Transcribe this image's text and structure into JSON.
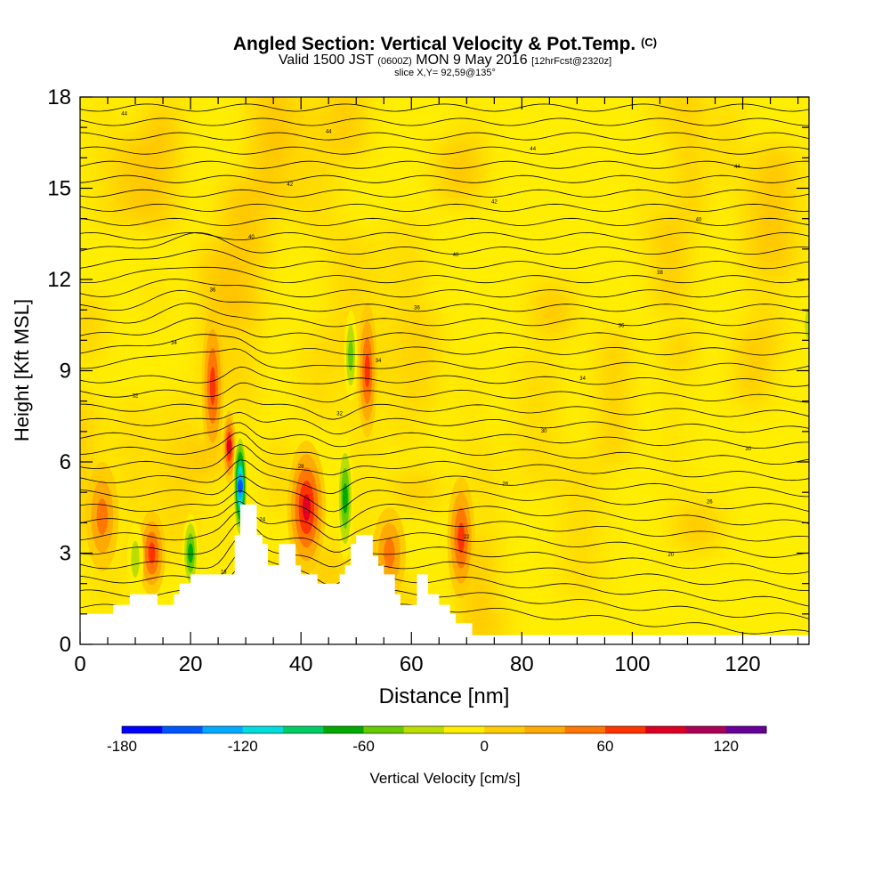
{
  "title": {
    "main": "Angled Section: Vertical Velocity & Pot.Temp.",
    "tag": "(C)"
  },
  "subtitle": {
    "part1": "Valid 1500 JST",
    "part2": "(0600Z)",
    "part3": "MON 9 May 2016",
    "part4": "[12hrFcst@2320z]"
  },
  "slice_label": "slice X,Y= 92,59@135°",
  "colors": {
    "background_yellow": "#ffee00",
    "terrain": "#ffffff",
    "contour": "#000000"
  },
  "chart_data": {
    "type": "heatmap",
    "xlabel": "Distance [nm]",
    "ylabel": "Height [Kft MSL]",
    "xlim": [
      0,
      132
    ],
    "ylim": [
      0,
      18
    ],
    "x_ticks": [
      "0",
      "20",
      "40",
      "60",
      "80",
      "100",
      "120"
    ],
    "y_ticks": [
      "0",
      "3",
      "6",
      "9",
      "12",
      "15",
      "18"
    ],
    "terrain_profile": {
      "distance_nm": [
        0,
        5,
        6,
        8,
        9,
        13,
        14,
        16,
        17,
        18,
        19,
        20,
        22,
        27,
        28,
        29,
        31,
        32,
        33,
        34,
        35,
        36,
        38,
        39,
        40,
        42,
        43,
        46,
        47,
        48,
        49,
        50,
        52,
        53,
        54,
        55,
        57,
        58,
        60,
        61,
        62,
        63,
        65,
        66,
        67,
        68,
        70,
        71,
        72,
        132
      ],
      "height_kft": [
        1.0,
        1.0,
        1.3,
        1.3,
        1.65,
        1.65,
        1.3,
        1.3,
        1.65,
        2.0,
        2.0,
        2.3,
        2.3,
        2.3,
        3.6,
        4.6,
        4.6,
        3.6,
        3.3,
        2.6,
        2.6,
        3.3,
        3.3,
        2.6,
        2.3,
        2.3,
        2.0,
        2.0,
        2.3,
        2.6,
        3.3,
        3.6,
        3.6,
        2.9,
        2.6,
        2.3,
        1.65,
        1.3,
        1.3,
        2.3,
        2.3,
        1.65,
        1.3,
        1.3,
        1.0,
        0.7,
        0.7,
        0.3,
        0.3,
        0.3
      ]
    },
    "velocity_features": [
      {
        "kind": "updraft",
        "x_nm": 13,
        "y_kft": 3.0,
        "dx_nm": 2.5,
        "dy_kft": 1.4,
        "value_cms": 80
      },
      {
        "kind": "updraft",
        "x_nm": 4,
        "y_kft": 4.2,
        "dx_nm": 3,
        "dy_kft": 1.8,
        "value_cms": 50
      },
      {
        "kind": "updraft",
        "x_nm": 24,
        "y_kft": 8.5,
        "dx_nm": 2,
        "dy_kft": 2.5,
        "value_cms": 80
      },
      {
        "kind": "updraft",
        "x_nm": 27,
        "y_kft": 6.5,
        "dx_nm": 1.2,
        "dy_kft": 1.2,
        "value_cms": 90
      },
      {
        "kind": "updraft",
        "x_nm": 41,
        "y_kft": 4.5,
        "dx_nm": 3.5,
        "dy_kft": 2.2,
        "value_cms": 90
      },
      {
        "kind": "updraft",
        "x_nm": 52,
        "y_kft": 9.0,
        "dx_nm": 1.8,
        "dy_kft": 2.2,
        "value_cms": 70
      },
      {
        "kind": "updraft",
        "x_nm": 56,
        "y_kft": 3.0,
        "dx_nm": 3,
        "dy_kft": 1.5,
        "value_cms": 50
      },
      {
        "kind": "updraft",
        "x_nm": 69,
        "y_kft": 3.5,
        "dx_nm": 2.5,
        "dy_kft": 2.0,
        "value_cms": 70
      },
      {
        "kind": "downdraft",
        "x_nm": 29,
        "y_kft": 5.2,
        "dx_nm": 1.3,
        "dy_kft": 1.8,
        "value_cms": -150
      },
      {
        "kind": "downdraft",
        "x_nm": 20,
        "y_kft": 3.0,
        "dx_nm": 1.5,
        "dy_kft": 1.3,
        "value_cms": -70
      },
      {
        "kind": "downdraft",
        "x_nm": 48,
        "y_kft": 4.8,
        "dx_nm": 1.5,
        "dy_kft": 2.0,
        "value_cms": -70
      },
      {
        "kind": "downdraft",
        "x_nm": 49,
        "y_kft": 9.5,
        "dx_nm": 1.2,
        "dy_kft": 1.5,
        "value_cms": -50
      },
      {
        "kind": "downdraft",
        "x_nm": 10,
        "y_kft": 2.8,
        "dx_nm": 1.5,
        "dy_kft": 1.2,
        "value_cms": -40
      },
      {
        "kind": "downdraft",
        "x_nm": 132,
        "y_kft": 10.5,
        "dx_nm": 1.5,
        "dy_kft": 1.0,
        "value_cms": -40
      }
    ],
    "isentrope_labels": [
      "44",
      "44",
      "44",
      "44",
      "42",
      "42",
      "40",
      "40",
      "40",
      "38",
      "36",
      "36",
      "36",
      "34",
      "34",
      "34",
      "32",
      "32",
      "30",
      "30",
      "28",
      "26",
      "26",
      "24",
      "22",
      "20",
      "18"
    ],
    "colorbar": {
      "label": "Vertical Velocity [cm/s]",
      "min": -180,
      "max": 140,
      "step": 20,
      "tick_labels": [
        "-180",
        "-120",
        "-60",
        "0",
        "60",
        "120"
      ],
      "tick_values": [
        -180,
        -120,
        -60,
        0,
        60,
        120
      ],
      "colors": [
        "#0000ff",
        "#0055ff",
        "#00aaff",
        "#00dddd",
        "#00cc66",
        "#00aa00",
        "#66cc00",
        "#bbdd00",
        "#ffee00",
        "#ffcc00",
        "#ffaa00",
        "#ff7700",
        "#ff3300",
        "#dd0022",
        "#aa0055",
        "#660099"
      ]
    }
  }
}
